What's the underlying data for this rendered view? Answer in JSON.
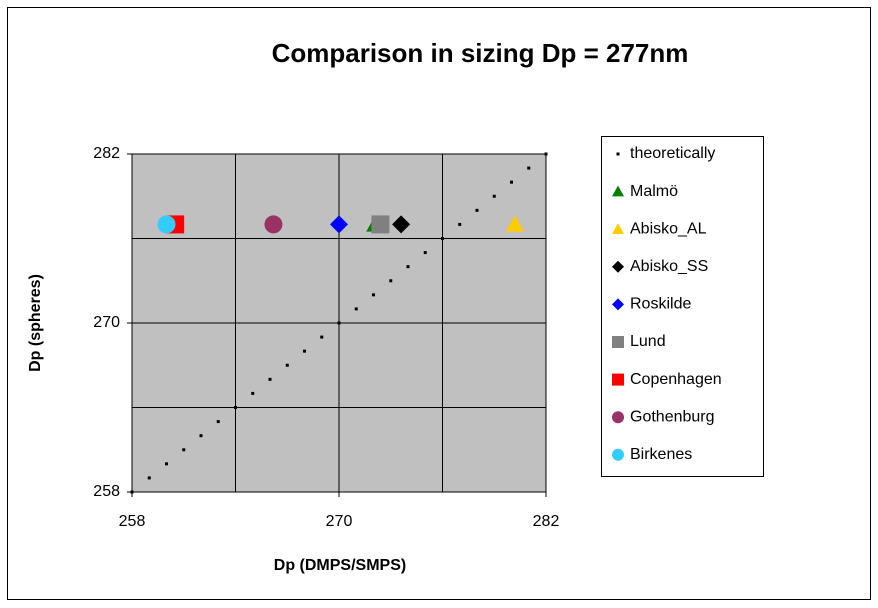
{
  "chart_data": {
    "type": "scatter",
    "title": "Comparison in sizing Dp = 277nm",
    "x_label": "Dp (DMPS/SMPS)",
    "y_label": "Dp (spheres)",
    "xlim": [
      258,
      282
    ],
    "ylim": [
      258,
      282
    ],
    "xticks": [
      258,
      270,
      282
    ],
    "yticks": [
      258,
      270,
      282
    ],
    "xminor": [
      264,
      276
    ],
    "yminor": [
      264,
      276
    ],
    "grid": true,
    "legend": "right",
    "series": [
      {
        "name": "theoretically",
        "color": "#000000",
        "marker": "dot",
        "x": [
          258,
          259,
          260,
          261,
          262,
          263,
          264,
          265,
          266,
          267,
          268,
          269,
          270,
          271,
          272,
          273,
          274,
          275,
          276,
          277,
          278,
          279,
          280,
          281,
          282
        ],
        "y": [
          258,
          259,
          260,
          261,
          262,
          263,
          264,
          265,
          266,
          267,
          268,
          269,
          270,
          271,
          272,
          273,
          274,
          275,
          276,
          277,
          278,
          279,
          280,
          281,
          282
        ]
      },
      {
        "name": "Malmö",
        "color": "#008000",
        "marker": "triangle",
        "x": [
          272.1
        ],
        "y": [
          277
        ]
      },
      {
        "name": "Abisko_AL",
        "color": "#ffcc00",
        "marker": "triangle",
        "x": [
          280.2
        ],
        "y": [
          277
        ]
      },
      {
        "name": "Abisko_SS",
        "color": "#000000",
        "marker": "diamond",
        "x": [
          273.6
        ],
        "y": [
          277
        ]
      },
      {
        "name": "Roskilde",
        "color": "#0000ff",
        "marker": "diamond",
        "x": [
          270
        ],
        "y": [
          277
        ]
      },
      {
        "name": "Lund",
        "color": "#808080",
        "marker": "square",
        "x": [
          272.4
        ],
        "y": [
          277
        ]
      },
      {
        "name": "Copenhagen",
        "color": "#ff0000",
        "marker": "square",
        "x": [
          260.5
        ],
        "y": [
          277
        ]
      },
      {
        "name": "Gothenburg",
        "color": "#993366",
        "marker": "circle",
        "x": [
          266.2
        ],
        "y": [
          277
        ]
      },
      {
        "name": "Birkenes",
        "color": "#33ccff",
        "marker": "circle",
        "x": [
          260
        ],
        "y": [
          277
        ]
      }
    ]
  }
}
